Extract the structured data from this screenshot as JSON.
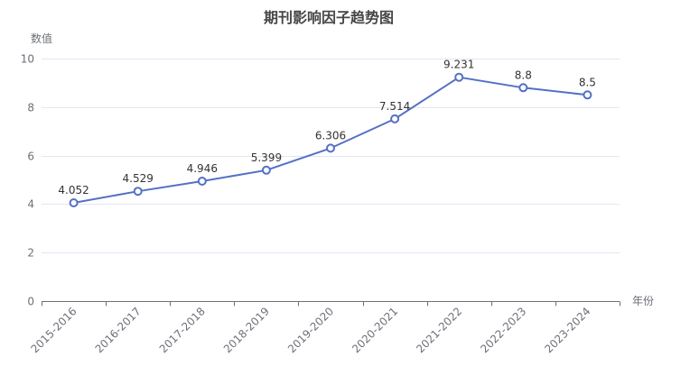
{
  "chart_data": {
    "type": "line",
    "title": "期刊影响因子趋势图",
    "xlabel": "年份",
    "ylabel": "数值",
    "categories": [
      "2015-2016",
      "2016-2017",
      "2017-2018",
      "2018-2019",
      "2019-2020",
      "2020-2021",
      "2021-2022",
      "2022-2023",
      "2023-2024"
    ],
    "series": [
      {
        "values": [
          4.052,
          4.529,
          4.946,
          5.399,
          6.306,
          7.514,
          9.231,
          8.8,
          8.5
        ],
        "labels": [
          "4.052",
          "4.529",
          "4.946",
          "5.399",
          "6.306",
          "7.514",
          "9.231",
          "8.8",
          "8.5"
        ],
        "color": "#5470C6"
      }
    ],
    "ylim": [
      0,
      10
    ],
    "yticks": [
      "0",
      "2",
      "4",
      "6",
      "8",
      "10"
    ],
    "grid": true,
    "legend": "none"
  }
}
